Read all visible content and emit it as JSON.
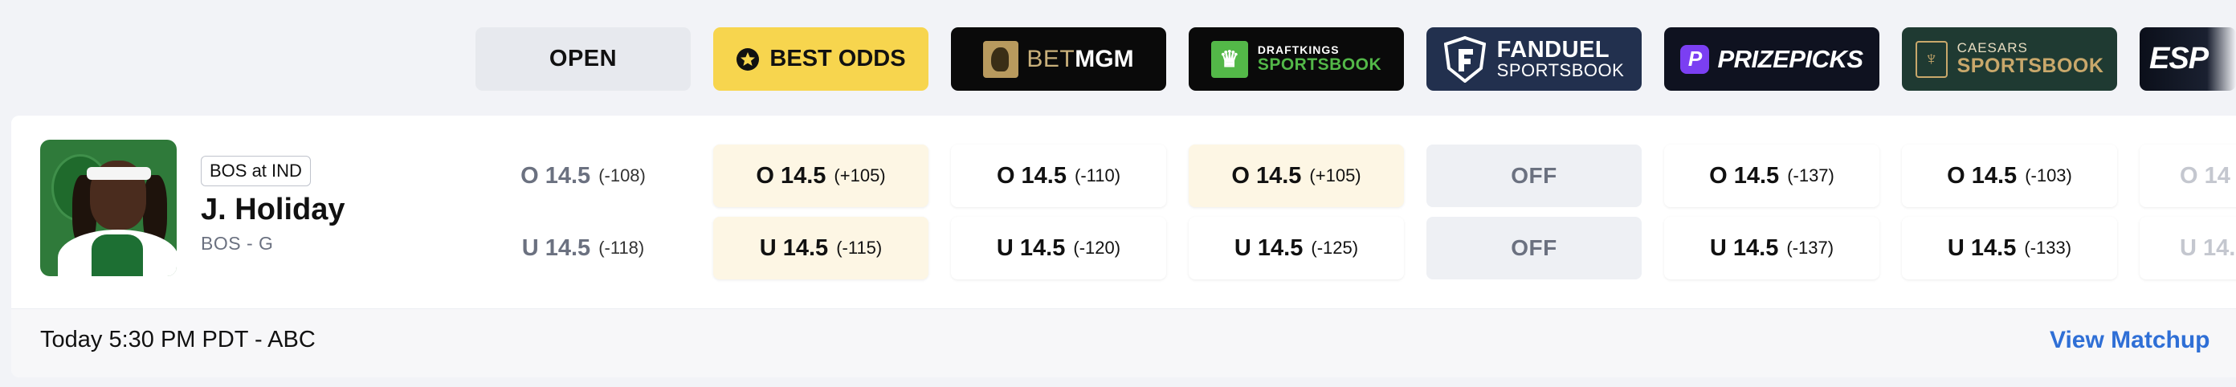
{
  "headers": {
    "open": "OPEN",
    "best_odds": "BEST ODDS",
    "betmgm": {
      "bet": "BET",
      "mgm": "MGM"
    },
    "draftkings": {
      "top": "DRAFTKINGS",
      "bottom": "SPORTSBOOK"
    },
    "fanduel": {
      "top": "FANDUEL",
      "bottom": "SPORTSBOOK"
    },
    "prizepicks": "PRIZEPICKS",
    "caesars": {
      "top": "CAESARS",
      "bottom": "SPORTSBOOK"
    },
    "espn": "ESP"
  },
  "player": {
    "matchup": "BOS at IND",
    "name": "J. Holiday",
    "position": "BOS - G"
  },
  "odds": {
    "open": {
      "over": {
        "line": "O 14.5",
        "price": "(-108)"
      },
      "under": {
        "line": "U 14.5",
        "price": "(-118)"
      }
    },
    "best": {
      "over": {
        "line": "O 14.5",
        "price": "(+105)"
      },
      "under": {
        "line": "U 14.5",
        "price": "(-115)"
      }
    },
    "betmgm": {
      "over": {
        "line": "O 14.5",
        "price": "(-110)"
      },
      "under": {
        "line": "U 14.5",
        "price": "(-120)"
      }
    },
    "draftkings": {
      "over": {
        "line": "O 14.5",
        "price": "(+105)"
      },
      "under": {
        "line": "U 14.5",
        "price": "(-125)"
      }
    },
    "fanduel": {
      "over": "OFF",
      "under": "OFF"
    },
    "prizepicks": {
      "over": {
        "line": "O 14.5",
        "price": "(-137)"
      },
      "under": {
        "line": "U 14.5",
        "price": "(-137)"
      }
    },
    "caesars": {
      "over": {
        "line": "O 14.5",
        "price": "(-103)"
      },
      "under": {
        "line": "U 14.5",
        "price": "(-133)"
      }
    },
    "espn": {
      "over": "O 14",
      "under": "U 14."
    }
  },
  "footer": {
    "game_time": "Today 5:30 PM PDT - ABC",
    "view_matchup": "View Matchup"
  },
  "colors": {
    "best_odds_bg": "#f7d54e",
    "best_cell_bg": "#fdf6e4",
    "link": "#2f6fd6",
    "draftkings_green": "#53b848",
    "fanduel_navy": "#22304e",
    "prizepicks_purple": "#7b3ff2",
    "caesars_gold": "#c9a86b"
  }
}
